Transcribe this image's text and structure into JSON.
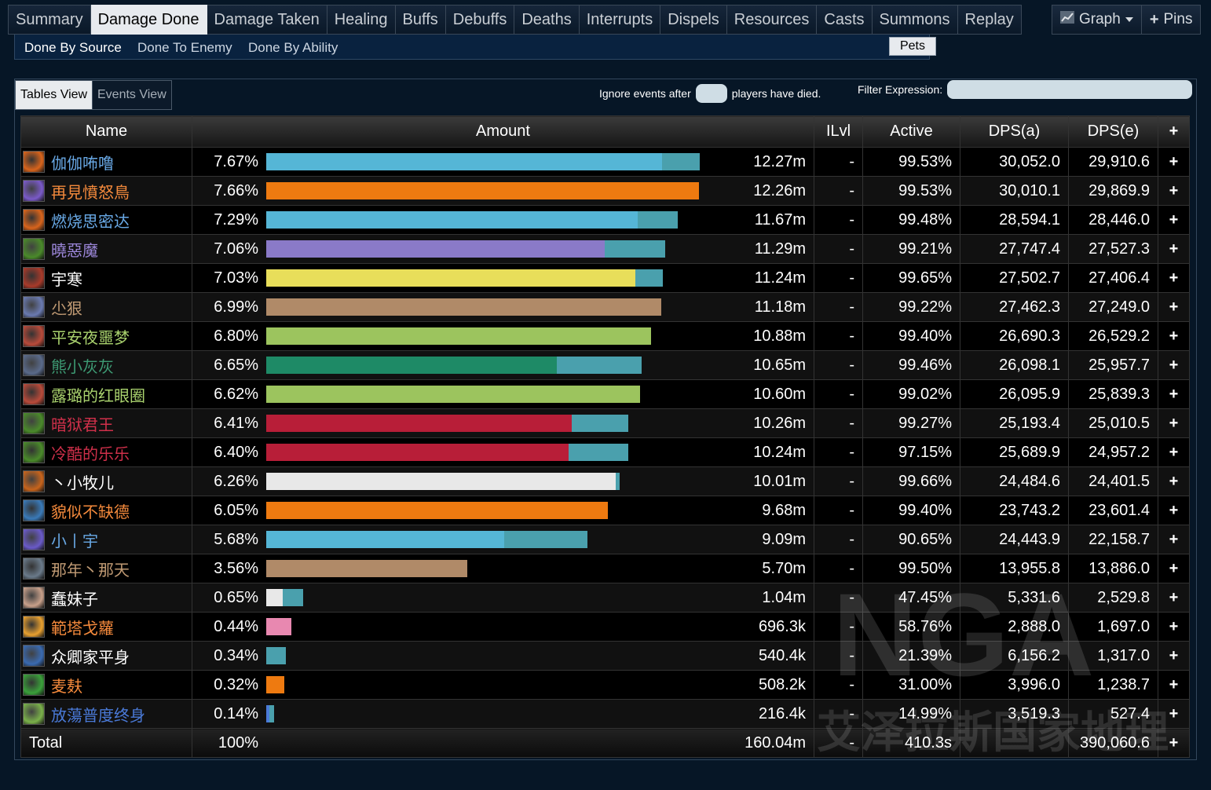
{
  "tabs": [
    "Summary",
    "Damage Done",
    "Damage Taken",
    "Healing",
    "Buffs",
    "Debuffs",
    "Deaths",
    "Interrupts",
    "Dispels",
    "Resources",
    "Casts",
    "Summons",
    "Replay"
  ],
  "active_tab": 1,
  "graph_label": "Graph",
  "pins_label": "Pins",
  "subtabs": [
    "Done By Source",
    "Done To Enemy",
    "Done By Ability"
  ],
  "pets_label": "Pets",
  "views": {
    "tables": "Tables View",
    "events": "Events View"
  },
  "ignore": {
    "before": "Ignore events after",
    "after": "players have died."
  },
  "filter_label": "Filter Expression:",
  "columns": {
    "name": "Name",
    "amount": "Amount",
    "ilvl": "ILvl",
    "active": "Active",
    "dpsa": "DPS(a)",
    "dpse": "DPS(e)",
    "plus": "+"
  },
  "rows": [
    {
      "name": "伽伽咘噜",
      "name_color": "#69a9e6",
      "icon_color": "#d8641c",
      "pct": "7.67%",
      "fill": 0.788,
      "bar": 0.72,
      "bar_color": "#55b6d6",
      "amount": "12.27m",
      "ilvl": "-",
      "active": "99.53%",
      "dpsa": "30,052.0",
      "dpse": "29,910.6",
      "plus": "+"
    },
    {
      "name": "再見憤怒鳥",
      "name_color": "#f58a3c",
      "icon_color": "#7a5ac8",
      "pct": "7.66%",
      "fill": 0.787,
      "bar": 0.787,
      "bar_color": "#ee7a10",
      "amount": "12.26m",
      "ilvl": "-",
      "active": "99.53%",
      "dpsa": "30,010.1",
      "dpse": "29,869.9",
      "plus": "+"
    },
    {
      "name": "燃烧思密达",
      "name_color": "#69a9e6",
      "icon_color": "#d8641c",
      "pct": "7.29%",
      "fill": 0.749,
      "bar": 0.675,
      "bar_color": "#55b6d6",
      "amount": "11.67m",
      "ilvl": "-",
      "active": "99.48%",
      "dpsa": "28,594.1",
      "dpse": "28,446.0",
      "plus": "+"
    },
    {
      "name": "曉惡魔",
      "name_color": "#9b86d8",
      "icon_color": "#4a8a2a",
      "pct": "7.06%",
      "fill": 0.725,
      "bar": 0.615,
      "bar_color": "#8a7ac8",
      "amount": "11.29m",
      "ilvl": "-",
      "active": "99.21%",
      "dpsa": "27,747.4",
      "dpse": "27,527.3",
      "plus": "+"
    },
    {
      "name": "宇寒",
      "name_color": "#ffffff",
      "icon_color": "#a83a2a",
      "pct": "7.03%",
      "fill": 0.722,
      "bar": 0.672,
      "bar_color": "#e8de5a",
      "amount": "11.24m",
      "ilvl": "-",
      "active": "99.65%",
      "dpsa": "27,502.7",
      "dpse": "27,406.4",
      "plus": "+"
    },
    {
      "name": "尐狠",
      "name_color": "#c19b74",
      "icon_color": "#6a7ab0",
      "pct": "6.99%",
      "fill": 0.718,
      "bar": 0.718,
      "bar_color": "#b08a68",
      "amount": "11.18m",
      "ilvl": "-",
      "active": "99.22%",
      "dpsa": "27,462.3",
      "dpse": "27,249.0",
      "plus": "+"
    },
    {
      "name": "平安夜噩梦",
      "name_color": "#aad36e",
      "icon_color": "#b84a3a",
      "pct": "6.80%",
      "fill": 0.7,
      "bar": 0.7,
      "bar_color": "#9cc45e",
      "amount": "10.88m",
      "ilvl": "-",
      "active": "99.40%",
      "dpsa": "26,690.3",
      "dpse": "26,529.2",
      "plus": "+"
    },
    {
      "name": "熊小灰灰",
      "name_color": "#3d9a73",
      "icon_color": "#5a6a8a",
      "pct": "6.65%",
      "fill": 0.683,
      "bar": 0.528,
      "bar_color": "#1e8a66",
      "amount": "10.65m",
      "ilvl": "-",
      "active": "99.46%",
      "dpsa": "26,098.1",
      "dpse": "25,957.7",
      "plus": "+"
    },
    {
      "name": "露璐的红眼圈",
      "name_color": "#aad36e",
      "icon_color": "#b84a3a",
      "pct": "6.62%",
      "fill": 0.68,
      "bar": 0.68,
      "bar_color": "#9cc45e",
      "amount": "10.60m",
      "ilvl": "-",
      "active": "99.02%",
      "dpsa": "26,095.9",
      "dpse": "25,839.3",
      "plus": "+"
    },
    {
      "name": "暗狱君王",
      "name_color": "#d0304a",
      "icon_color": "#4a8a2a",
      "pct": "6.41%",
      "fill": 0.658,
      "bar": 0.555,
      "bar_color": "#b81e38",
      "amount": "10.26m",
      "ilvl": "-",
      "active": "99.27%",
      "dpsa": "25,193.4",
      "dpse": "25,010.5",
      "plus": "+"
    },
    {
      "name": "冷酷的乐乐",
      "name_color": "#d0304a",
      "icon_color": "#4a8a2a",
      "pct": "6.40%",
      "fill": 0.658,
      "bar": 0.55,
      "bar_color": "#b81e38",
      "amount": "10.24m",
      "ilvl": "-",
      "active": "97.15%",
      "dpsa": "25,689.9",
      "dpse": "24,957.2",
      "plus": "+"
    },
    {
      "name": "丶小牧儿",
      "name_color": "#ffffff",
      "icon_color": "#c8641c",
      "pct": "6.26%",
      "fill": 0.643,
      "bar": 0.635,
      "bar_color": "#e8e8e8",
      "amount": "10.01m",
      "ilvl": "-",
      "active": "99.66%",
      "dpsa": "24,484.6",
      "dpse": "24,401.5",
      "plus": "+"
    },
    {
      "name": "貌似不缺德",
      "name_color": "#f58a3c",
      "icon_color": "#3a7ab8",
      "pct": "6.05%",
      "fill": 0.622,
      "bar": 0.622,
      "bar_color": "#ee7a10",
      "amount": "9.68m",
      "ilvl": "-",
      "active": "99.40%",
      "dpsa": "23,743.2",
      "dpse": "23,601.4",
      "plus": "+"
    },
    {
      "name": "小丨宇",
      "name_color": "#69a9e6",
      "icon_color": "#6a5ac8",
      "pct": "5.68%",
      "fill": 0.584,
      "bar": 0.433,
      "bar_color": "#55b6d6",
      "amount": "9.09m",
      "ilvl": "-",
      "active": "90.65%",
      "dpsa": "24,443.9",
      "dpse": "22,158.7",
      "plus": "+"
    },
    {
      "name": "那年丶那天",
      "name_color": "#c19b74",
      "icon_color": "#6a7a8a",
      "pct": "3.56%",
      "fill": 0.366,
      "bar": 0.366,
      "bar_color": "#b08a68",
      "amount": "5.70m",
      "ilvl": "-",
      "active": "99.50%",
      "dpsa": "13,955.8",
      "dpse": "13,886.0",
      "plus": "+"
    },
    {
      "name": "蠢妹子",
      "name_color": "#ffffff",
      "icon_color": "#c8a08a",
      "pct": "0.65%",
      "fill": 0.067,
      "bar": 0.03,
      "bar_color": "#e8e8e8",
      "amount": "1.04m",
      "ilvl": "-",
      "active": "47.45%",
      "dpsa": "5,331.6",
      "dpse": "2,529.8",
      "plus": "+"
    },
    {
      "name": "範塔戈蘿",
      "name_color": "#f58a3c",
      "icon_color": "#e8a030",
      "pct": "0.44%",
      "fill": 0.045,
      "bar": 0.045,
      "bar_color": "#e888b0",
      "amount": "696.3k",
      "ilvl": "-",
      "active": "58.76%",
      "dpsa": "2,888.0",
      "dpse": "1,697.0",
      "plus": "+"
    },
    {
      "name": "众卿家平身",
      "name_color": "#ffffff",
      "icon_color": "#3a6ab0",
      "pct": "0.34%",
      "fill": 0.035,
      "bar": 0.0,
      "bar_color": "#4aa0ad",
      "amount": "540.4k",
      "ilvl": "-",
      "active": "21.39%",
      "dpsa": "6,156.2",
      "dpse": "1,317.0",
      "plus": "+"
    },
    {
      "name": "麦麸",
      "name_color": "#f58a3c",
      "icon_color": "#3aa03a",
      "pct": "0.32%",
      "fill": 0.033,
      "bar": 0.033,
      "bar_color": "#ee7a10",
      "amount": "508.2k",
      "ilvl": "-",
      "active": "31.00%",
      "dpsa": "3,996.0",
      "dpse": "1,238.7",
      "plus": "+"
    },
    {
      "name": "放蕩普度终身",
      "name_color": "#4a7ad8",
      "icon_color": "#7ab04a",
      "pct": "0.14%",
      "fill": 0.014,
      "bar": 0.005,
      "bar_color": "#4a7ad8",
      "amount": "216.4k",
      "ilvl": "-",
      "active": "14.99%",
      "dpsa": "3,519.3",
      "dpse": "527.4",
      "plus": "+"
    }
  ],
  "total": {
    "name": "Total",
    "pct": "100%",
    "amount": "160.04m",
    "ilvl": "-",
    "active": "410.3s",
    "dpsa": "",
    "dpse": "390,060.6",
    "plus": "+"
  },
  "watermark": {
    "text": "艾泽拉斯国家地理",
    "logo": "NGA"
  }
}
